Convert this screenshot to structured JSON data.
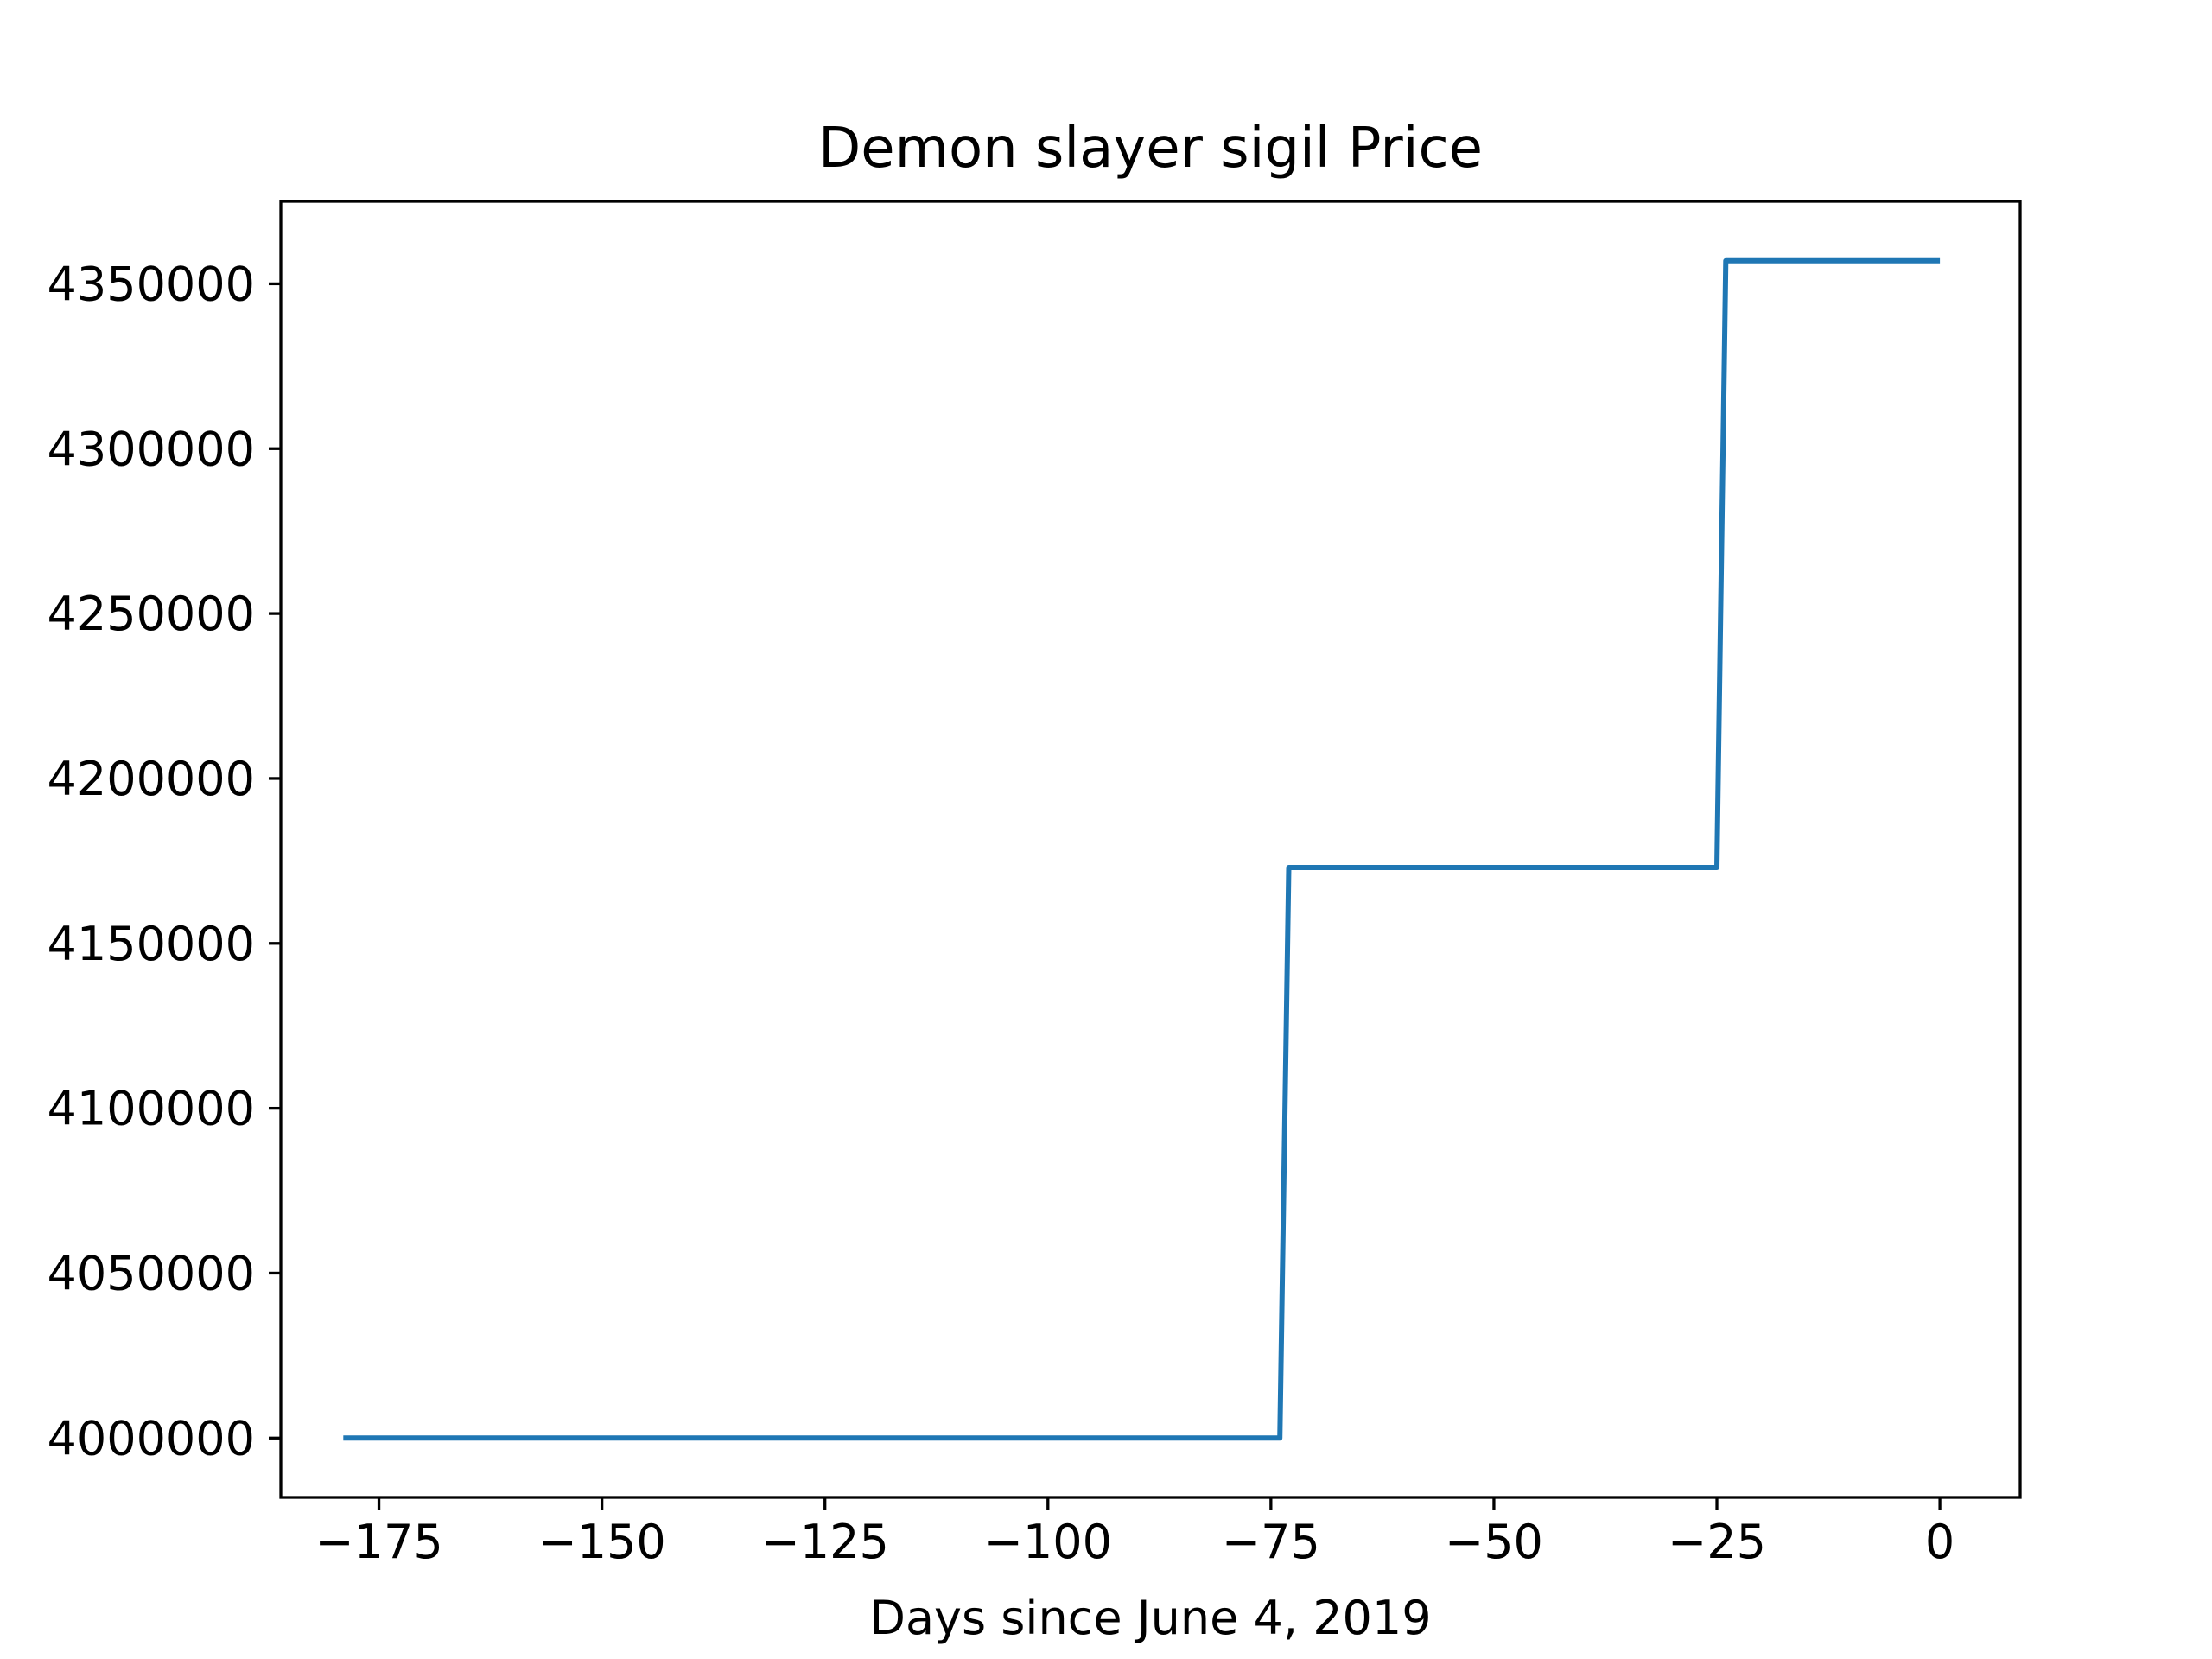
{
  "chart_data": {
    "type": "line",
    "title": "Demon slayer sigil Price",
    "xlabel": "Days since June 4, 2019",
    "ylabel": "",
    "xlim": [
      -186,
      9
    ],
    "ylim": [
      3982000,
      4375000
    ],
    "x_ticks": [
      -175,
      -150,
      -125,
      -100,
      -75,
      -50,
      -25,
      0
    ],
    "x_tick_labels": [
      "−175",
      "−150",
      "−125",
      "−100",
      "−75",
      "−50",
      "−25",
      "0"
    ],
    "y_ticks": [
      4000000,
      4050000,
      4100000,
      4150000,
      4200000,
      4250000,
      4300000,
      4350000
    ],
    "y_tick_labels": [
      "4000000",
      "4050000",
      "4100000",
      "4150000",
      "4200000",
      "4250000",
      "4300000",
      "4350000"
    ],
    "grid": false,
    "series": [
      {
        "color": "#1f77b4",
        "x": [
          -179,
          -74,
          -73,
          -25,
          -24,
          0
        ],
        "y": [
          4000000,
          4000000,
          4173000,
          4173000,
          4357000,
          4357000
        ]
      }
    ]
  }
}
